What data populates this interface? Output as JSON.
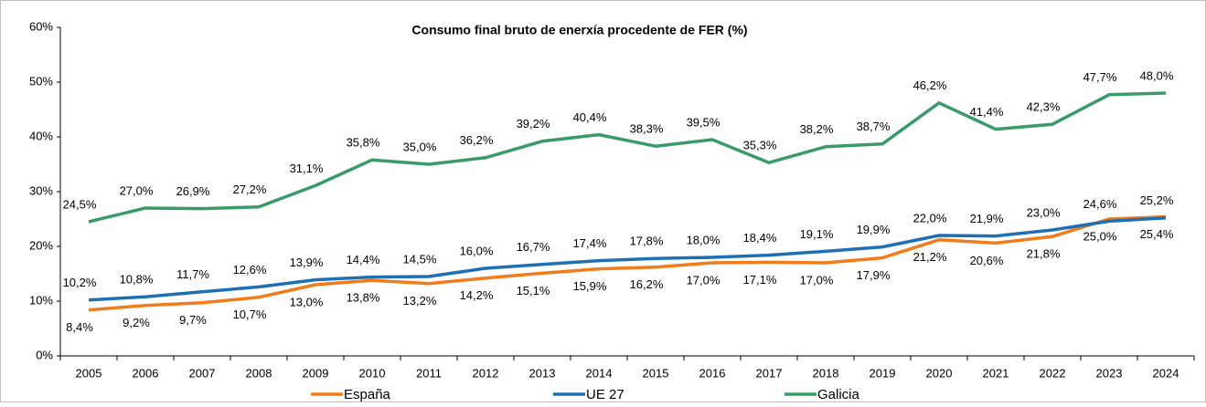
{
  "chart_data": {
    "type": "line",
    "title": "Consumo final bruto de enerxía procedente de FER (%)",
    "categories": [
      "2005",
      "2006",
      "2007",
      "2008",
      "2009",
      "2010",
      "2011",
      "2012",
      "2013",
      "2014",
      "2015",
      "2016",
      "2017",
      "2018",
      "2019",
      "2020",
      "2021",
      "2022",
      "2023",
      "2024"
    ],
    "series": [
      {
        "name": "España",
        "color": "#f07c1c",
        "label_pos": "below",
        "values": [
          8.4,
          9.2,
          9.7,
          10.7,
          13.0,
          13.8,
          13.2,
          14.2,
          15.1,
          15.9,
          16.2,
          17.0,
          17.1,
          17.0,
          17.9,
          21.2,
          20.6,
          21.8,
          25.0,
          25.4
        ],
        "value_labels": [
          "8,4%",
          "9,2%",
          "9,7%",
          "10,7%",
          "13,0%",
          "13,8%",
          "13,2%",
          "14,2%",
          "15,1%",
          "15,9%",
          "16,2%",
          "17,0%",
          "17,1%",
          "17,0%",
          "17,9%",
          "21,2%",
          "20,6%",
          "21,8%",
          "25,0%",
          "25,4%"
        ]
      },
      {
        "name": "UE 27",
        "color": "#1f6fb5",
        "label_pos": "above",
        "values": [
          10.2,
          10.8,
          11.7,
          12.6,
          13.9,
          14.4,
          14.5,
          16.0,
          16.7,
          17.4,
          17.8,
          18.0,
          18.4,
          19.1,
          19.9,
          22.0,
          21.9,
          23.0,
          24.6,
          25.2
        ],
        "value_labels": [
          "10,2%",
          "10,8%",
          "11,7%",
          "12,6%",
          "13,9%",
          "14,4%",
          "14,5%",
          "16,0%",
          "16,7%",
          "17,4%",
          "17,8%",
          "18,0%",
          "18,4%",
          "19,1%",
          "19,9%",
          "22,0%",
          "21,9%",
          "23,0%",
          "24,6%",
          "25,2%"
        ]
      },
      {
        "name": "Galicia",
        "color": "#3a9a6a",
        "label_pos": "above",
        "values": [
          24.5,
          27.0,
          26.9,
          27.2,
          31.1,
          35.8,
          35.0,
          36.2,
          39.2,
          40.4,
          38.3,
          39.5,
          35.3,
          38.2,
          38.7,
          46.2,
          41.4,
          42.3,
          47.7,
          48.0
        ],
        "value_labels": [
          "24,5%",
          "27,0%",
          "26,9%",
          "27,2%",
          "31,1%",
          "35,8%",
          "35,0%",
          "36,2%",
          "39,2%",
          "40,4%",
          "38,3%",
          "39,5%",
          "35,3%",
          "38,2%",
          "38,7%",
          "46,2%",
          "41,4%",
          "42,3%",
          "47,7%",
          "48,0%"
        ]
      }
    ],
    "ylim": [
      0,
      60
    ],
    "yticks": [
      {
        "value": 0,
        "label": "0%"
      },
      {
        "value": 10,
        "label": "10%"
      },
      {
        "value": 20,
        "label": "20%"
      },
      {
        "value": 30,
        "label": "30%"
      },
      {
        "value": 40,
        "label": "40%"
      },
      {
        "value": 50,
        "label": "50%"
      },
      {
        "value": 60,
        "label": "60%"
      }
    ],
    "grid": false,
    "legend": "bottom"
  }
}
